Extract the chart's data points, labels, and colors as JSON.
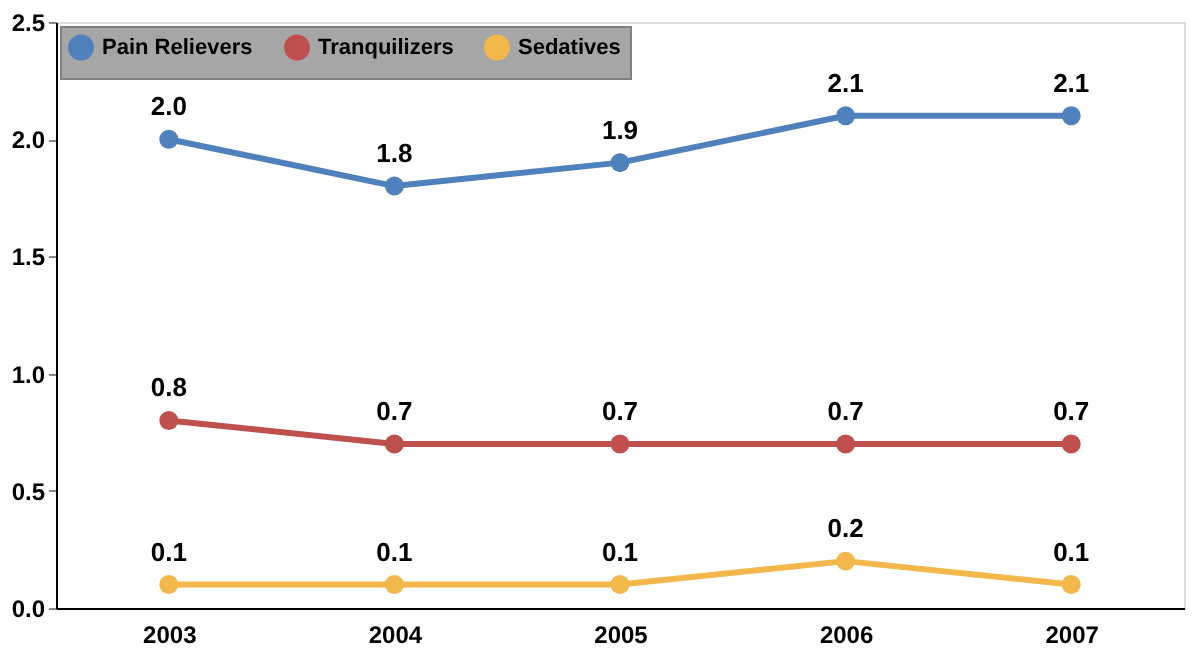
{
  "chart_data": {
    "type": "line",
    "categories": [
      "2003",
      "2004",
      "2005",
      "2006",
      "2007"
    ],
    "series": [
      {
        "name": "Pain Relievers",
        "color": "#4f81bd",
        "values": [
          2.0,
          1.8,
          1.9,
          2.1,
          2.1
        ],
        "value_labels": [
          "2.0",
          "1.8",
          "1.9",
          "2.1",
          "2.1"
        ]
      },
      {
        "name": "Tranquilizers",
        "color": "#c0504d",
        "values": [
          0.8,
          0.7,
          0.7,
          0.7,
          0.7
        ],
        "value_labels": [
          "0.8",
          "0.7",
          "0.7",
          "0.7",
          "0.7"
        ]
      },
      {
        "name": "Sedatives",
        "color": "#f2b84b",
        "values": [
          0.1,
          0.1,
          0.1,
          0.2,
          0.1
        ],
        "value_labels": [
          "0.1",
          "0.1",
          "0.1",
          "0.2",
          "0.1"
        ]
      }
    ],
    "ylim": [
      0,
      2.5
    ],
    "yticks": [
      {
        "value": 0,
        "label": "0.0"
      },
      {
        "value": 0.5,
        "label": "0.5"
      },
      {
        "value": 1,
        "label": "1.0"
      },
      {
        "value": 1.5,
        "label": "1.5"
      },
      {
        "value": 2,
        "label": "2.0"
      },
      {
        "value": 2.5,
        "label": "2.5"
      }
    ],
    "grid": false,
    "legend": "top left",
    "marker": "circle",
    "line_style": "solid"
  }
}
